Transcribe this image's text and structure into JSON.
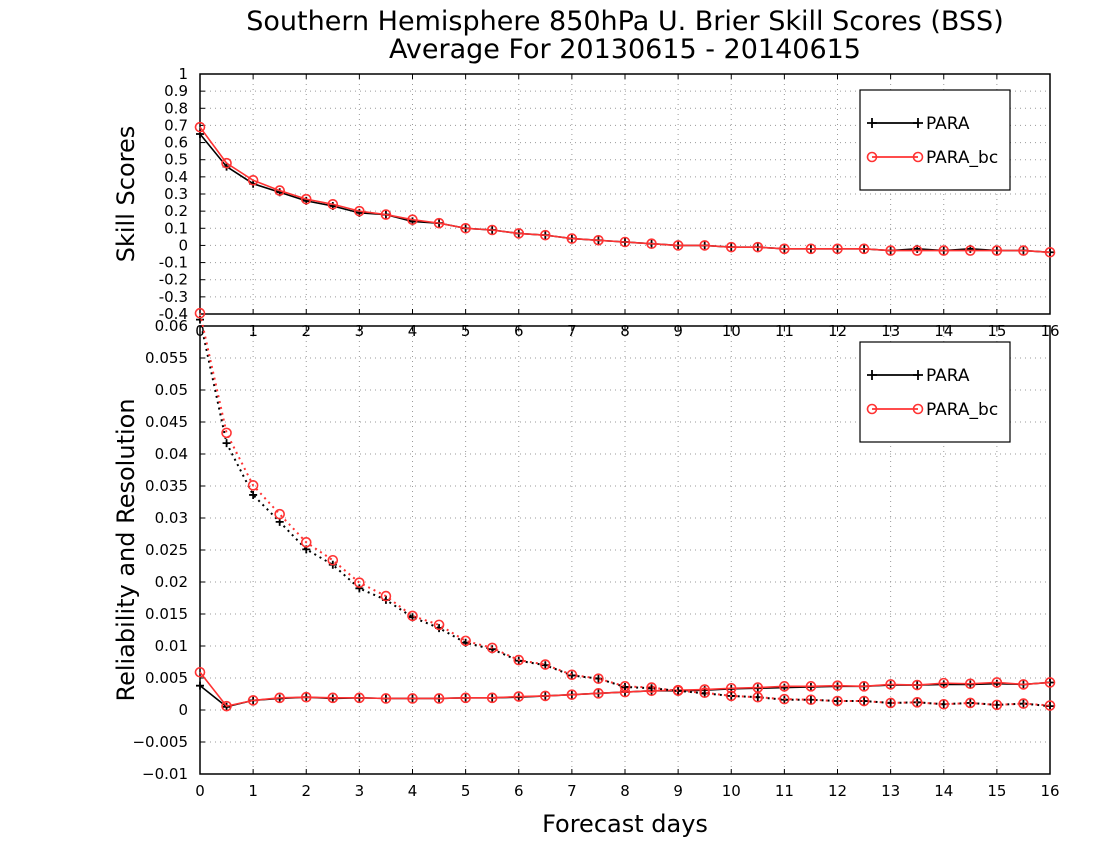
{
  "title": "Southern Hemisphere 850hPa U. Brier Skill Scores (BSS)",
  "subtitle": "Average For 20130615 - 20140615",
  "xlabel": "Forecast days",
  "chart_data": [
    {
      "type": "line",
      "ylabel": "Skill Scores",
      "xlim": [
        0,
        16
      ],
      "ylim": [
        -0.4,
        1
      ],
      "xticks": [
        "0",
        "1",
        "2",
        "3",
        "4",
        "5",
        "6",
        "7",
        "8",
        "9",
        "10",
        "11",
        "12",
        "13",
        "14",
        "15",
        "16"
      ],
      "yticks": [
        "-0.4",
        "-0.3",
        "-0.2",
        "-0.1",
        "0",
        "0.1",
        "0.2",
        "0.3",
        "0.4",
        "0.5",
        "0.6",
        "0.7",
        "0.8",
        "0.9",
        "1"
      ],
      "grid": true,
      "legend_position": "top-right",
      "legend": [
        "PARA",
        "PARA_bc"
      ],
      "x": [
        0,
        0.5,
        1,
        1.5,
        2,
        2.5,
        3,
        3.5,
        4,
        4.5,
        5,
        5.5,
        6,
        6.5,
        7,
        7.5,
        8,
        8.5,
        9,
        9.5,
        10,
        10.5,
        11,
        11.5,
        12,
        12.5,
        13,
        13.5,
        14,
        14.5,
        15,
        15.5,
        16
      ],
      "series": [
        {
          "name": "PARA",
          "color": "#000000",
          "marker": "plus",
          "values": [
            0.65,
            0.46,
            0.36,
            0.31,
            0.26,
            0.23,
            0.19,
            0.18,
            0.14,
            0.13,
            0.1,
            0.09,
            0.07,
            0.06,
            0.04,
            0.03,
            0.02,
            0.01,
            0.0,
            0.0,
            -0.01,
            -0.01,
            -0.02,
            -0.02,
            -0.02,
            -0.02,
            -0.03,
            -0.02,
            -0.03,
            -0.02,
            -0.03,
            -0.03,
            -0.04
          ]
        },
        {
          "name": "PARA_bc",
          "color": "#ff3333",
          "marker": "circle",
          "values": [
            0.69,
            0.48,
            0.38,
            0.32,
            0.27,
            0.24,
            0.2,
            0.18,
            0.15,
            0.13,
            0.1,
            0.09,
            0.07,
            0.06,
            0.04,
            0.03,
            0.02,
            0.01,
            0.0,
            0.0,
            -0.01,
            -0.01,
            -0.02,
            -0.02,
            -0.02,
            -0.02,
            -0.03,
            -0.03,
            -0.03,
            -0.03,
            -0.03,
            -0.03,
            -0.04
          ]
        }
      ]
    },
    {
      "type": "line",
      "ylabel": "Reliability and Resolution",
      "xlim": [
        0,
        16
      ],
      "ylim": [
        -0.01,
        0.06
      ],
      "xticks": [
        "0",
        "1",
        "2",
        "3",
        "4",
        "5",
        "6",
        "7",
        "8",
        "9",
        "10",
        "11",
        "12",
        "13",
        "14",
        "15",
        "16"
      ],
      "yticks": [
        "−0.01",
        "−0.005",
        "0",
        "0.005",
        "0.01",
        "0.015",
        "0.02",
        "0.025",
        "0.03",
        "0.035",
        "0.04",
        "0.045",
        "0.05",
        "0.055",
        "0.06"
      ],
      "grid": true,
      "legend_position": "top-right",
      "legend": [
        "PARA",
        "PARA_bc"
      ],
      "x": [
        0,
        0.5,
        1,
        1.5,
        2,
        2.5,
        3,
        3.5,
        4,
        4.5,
        5,
        5.5,
        6,
        6.5,
        7,
        7.5,
        8,
        8.5,
        9,
        9.5,
        10,
        10.5,
        11,
        11.5,
        12,
        12.5,
        13,
        13.5,
        14,
        14.5,
        15,
        15.5,
        16
      ],
      "series": [
        {
          "name": "PARA",
          "component": "reliability",
          "color": "#000000",
          "marker": "plus",
          "line": "solid",
          "values": [
            0.0038,
            0.0005,
            0.0015,
            0.0018,
            0.002,
            0.0018,
            0.0019,
            0.0018,
            0.0018,
            0.0018,
            0.0019,
            0.0019,
            0.002,
            0.0022,
            0.0024,
            0.0026,
            0.0028,
            0.003,
            0.003,
            0.0031,
            0.0033,
            0.0034,
            0.0035,
            0.0036,
            0.0037,
            0.0037,
            0.0039,
            0.0039,
            0.004,
            0.004,
            0.0041,
            0.004,
            0.0043
          ]
        },
        {
          "name": "PARA_bc",
          "component": "reliability",
          "color": "#ff3333",
          "marker": "circle",
          "line": "solid",
          "values": [
            0.0059,
            0.0006,
            0.0015,
            0.0019,
            0.002,
            0.0019,
            0.0019,
            0.0018,
            0.0018,
            0.0018,
            0.0019,
            0.0019,
            0.0021,
            0.0022,
            0.0024,
            0.0026,
            0.0028,
            0.003,
            0.0031,
            0.0032,
            0.0034,
            0.0035,
            0.0037,
            0.0037,
            0.0038,
            0.0037,
            0.004,
            0.0039,
            0.0042,
            0.0041,
            0.0043,
            0.004,
            0.0043
          ]
        },
        {
          "name": "PARA",
          "component": "resolution",
          "color": "#000000",
          "marker": "plus",
          "line": "dotted",
          "values": [
            0.061,
            0.0417,
            0.0336,
            0.0294,
            0.0251,
            0.0227,
            0.019,
            0.0172,
            0.0145,
            0.0128,
            0.0105,
            0.0095,
            0.0077,
            0.007,
            0.0054,
            0.0049,
            0.0036,
            0.0034,
            0.003,
            0.0026,
            0.0022,
            0.002,
            0.0016,
            0.0016,
            0.0014,
            0.0014,
            0.0011,
            0.0012,
            0.0009,
            0.0011,
            0.0008,
            0.001,
            0.0006
          ]
        },
        {
          "name": "PARA_bc",
          "component": "resolution",
          "color": "#ff3333",
          "marker": "circle",
          "line": "dotted",
          "values": [
            0.062,
            0.0433,
            0.0351,
            0.0306,
            0.0262,
            0.0234,
            0.0199,
            0.0178,
            0.0147,
            0.0133,
            0.0108,
            0.0097,
            0.0078,
            0.0071,
            0.0055,
            0.0049,
            0.0037,
            0.0035,
            0.003,
            0.0027,
            0.0022,
            0.002,
            0.0017,
            0.0016,
            0.0014,
            0.0014,
            0.0011,
            0.0012,
            0.0009,
            0.0011,
            0.0008,
            0.001,
            0.0007
          ]
        }
      ]
    }
  ]
}
